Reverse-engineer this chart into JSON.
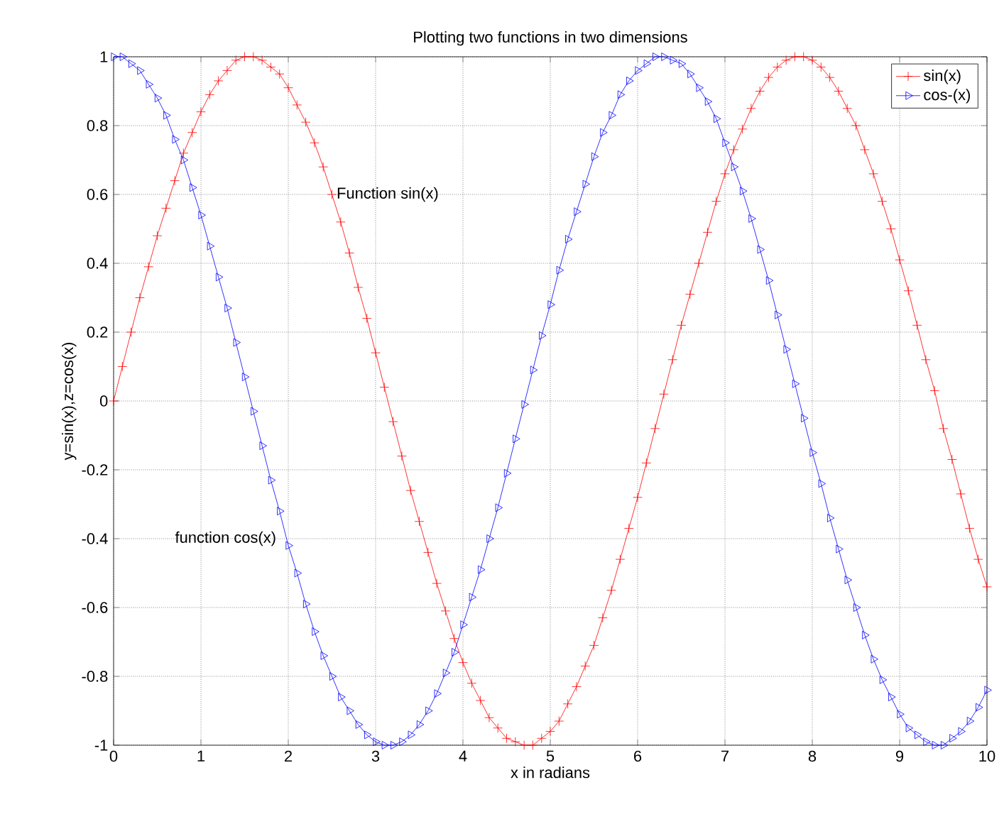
{
  "chart_data": {
    "type": "line",
    "title": "Plotting two functions in two dimensions",
    "xlabel": "x in radians",
    "ylabel": "y=sin(x),z=cos(x)",
    "x": [
      0,
      0.1,
      0.2,
      0.3,
      0.4,
      0.5,
      0.6,
      0.7,
      0.8,
      0.9,
      1,
      1.1,
      1.2,
      1.3,
      1.4,
      1.5,
      1.6,
      1.7,
      1.8,
      1.9,
      2,
      2.1,
      2.2,
      2.3,
      2.4,
      2.5,
      2.6,
      2.7,
      2.8,
      2.9,
      3,
      3.1,
      3.2,
      3.3,
      3.4,
      3.5,
      3.6,
      3.7,
      3.8,
      3.9,
      4,
      4.1,
      4.2,
      4.3,
      4.4,
      4.5,
      4.6,
      4.7,
      4.8,
      4.9,
      5,
      5.1,
      5.2,
      5.3,
      5.4,
      5.5,
      5.6,
      5.7,
      5.8,
      5.9,
      6,
      6.1,
      6.2,
      6.3,
      6.4,
      6.5,
      6.6,
      6.7,
      6.8,
      6.9,
      7,
      7.1,
      7.2,
      7.3,
      7.4,
      7.5,
      7.6,
      7.7,
      7.8,
      7.9,
      8,
      8.1,
      8.2,
      8.3,
      8.4,
      8.5,
      8.6,
      8.7,
      8.8,
      8.9,
      9,
      9.1,
      9.2,
      9.3,
      9.4,
      9.5,
      9.6,
      9.7,
      9.8,
      9.9,
      10
    ],
    "series": [
      {
        "name": "sin(x)",
        "color": "#ff0000",
        "marker": "cross",
        "line_style": "solid",
        "values": [
          0.0,
          0.1,
          0.2,
          0.3,
          0.39,
          0.48,
          0.56,
          0.64,
          0.72,
          0.78,
          0.84,
          0.89,
          0.93,
          0.96,
          0.99,
          1.0,
          1.0,
          0.99,
          0.97,
          0.95,
          0.91,
          0.86,
          0.81,
          0.75,
          0.68,
          0.6,
          0.52,
          0.43,
          0.33,
          0.24,
          0.14,
          0.04,
          -0.06,
          -0.16,
          -0.26,
          -0.35,
          -0.44,
          -0.53,
          -0.61,
          -0.69,
          -0.76,
          -0.82,
          -0.87,
          -0.92,
          -0.95,
          -0.98,
          -0.99,
          -1.0,
          -1.0,
          -0.98,
          -0.96,
          -0.93,
          -0.88,
          -0.83,
          -0.77,
          -0.71,
          -0.63,
          -0.55,
          -0.46,
          -0.37,
          -0.28,
          -0.18,
          -0.08,
          0.02,
          0.12,
          0.22,
          0.31,
          0.4,
          0.49,
          0.58,
          0.66,
          0.73,
          0.79,
          0.85,
          0.9,
          0.94,
          0.97,
          0.99,
          1.0,
          1.0,
          0.99,
          0.97,
          0.94,
          0.9,
          0.85,
          0.8,
          0.73,
          0.66,
          0.58,
          0.5,
          0.41,
          0.32,
          0.22,
          0.12,
          0.03,
          -0.08,
          -0.17,
          -0.27,
          -0.37,
          -0.46,
          -0.54
        ]
      },
      {
        "name": "cos-(x)",
        "color": "#0000ff",
        "marker": "triangle",
        "line_style": "solid",
        "values": [
          1.0,
          1.0,
          0.98,
          0.96,
          0.92,
          0.88,
          0.83,
          0.76,
          0.7,
          0.62,
          0.54,
          0.45,
          0.36,
          0.27,
          0.17,
          0.07,
          -0.03,
          -0.13,
          -0.23,
          -0.32,
          -0.42,
          -0.5,
          -0.59,
          -0.67,
          -0.74,
          -0.8,
          -0.86,
          -0.9,
          -0.94,
          -0.97,
          -0.99,
          -1.0,
          -1.0,
          -0.99,
          -0.97,
          -0.94,
          -0.9,
          -0.85,
          -0.79,
          -0.73,
          -0.65,
          -0.57,
          -0.49,
          -0.4,
          -0.31,
          -0.21,
          -0.11,
          -0.01,
          0.09,
          0.19,
          0.28,
          0.38,
          0.47,
          0.55,
          0.63,
          0.71,
          0.78,
          0.83,
          0.89,
          0.93,
          0.96,
          0.98,
          1.0,
          1.0,
          0.99,
          0.98,
          0.95,
          0.91,
          0.87,
          0.82,
          0.75,
          0.68,
          0.61,
          0.53,
          0.44,
          0.35,
          0.25,
          0.15,
          0.05,
          -0.05,
          -0.15,
          -0.24,
          -0.34,
          -0.43,
          -0.52,
          -0.6,
          -0.68,
          -0.75,
          -0.81,
          -0.86,
          -0.91,
          -0.95,
          -0.97,
          -0.99,
          -1.0,
          -1.0,
          -0.98,
          -0.96,
          -0.93,
          -0.89,
          -0.84
        ]
      }
    ],
    "xlim": [
      0,
      10
    ],
    "ylim": [
      -1,
      1
    ],
    "xticks": [
      0,
      1,
      2,
      3,
      4,
      5,
      6,
      7,
      8,
      9,
      10
    ],
    "yticks": [
      -1,
      -0.8,
      -0.6,
      -0.4,
      -0.2,
      0,
      0.2,
      0.4,
      0.6,
      0.8,
      1
    ],
    "grid": true,
    "legend": "top right",
    "annotations": [
      {
        "text": "Function sin(x)",
        "x": 2.55,
        "y": 0.6
      },
      "function cos(x)"
    ]
  }
}
